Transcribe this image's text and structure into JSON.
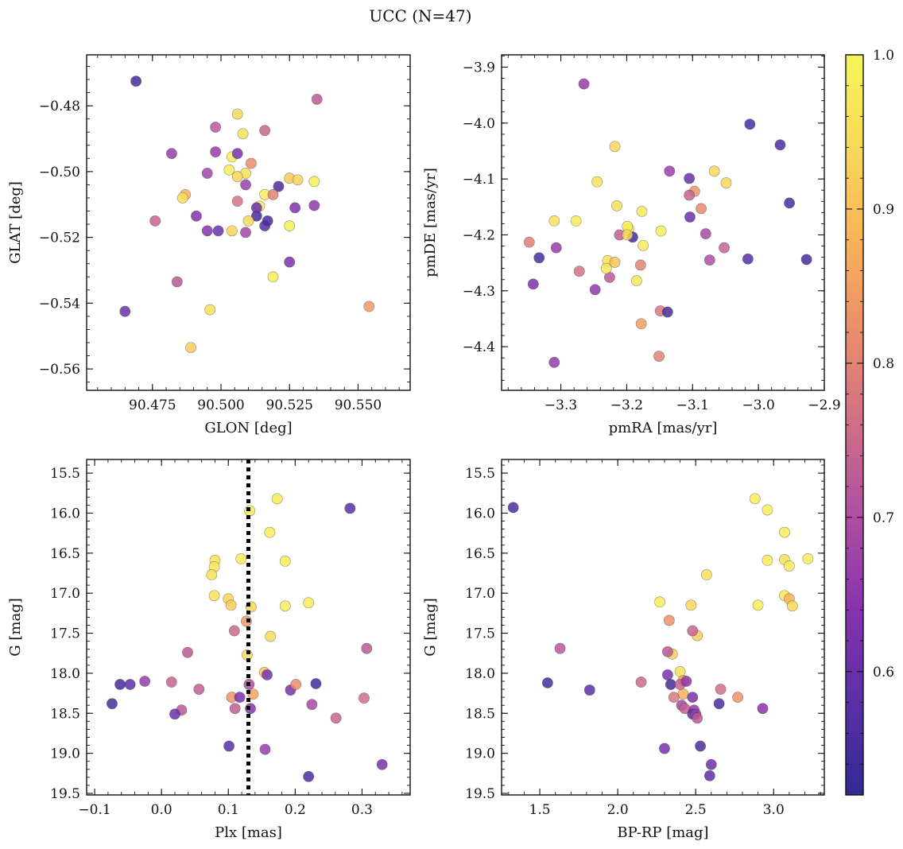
{
  "figure": {
    "title": "UCC (N=47)"
  },
  "colorbar": {
    "min": 0.52,
    "max": 1.0,
    "ticks": [
      0.6,
      0.7,
      0.8,
      0.9,
      1.0
    ],
    "tick_labels": [
      "0.6",
      "0.7",
      "0.8",
      "0.9",
      "1.0"
    ],
    "colormap": "plasma",
    "stops": [
      "#312a92",
      "#5b2fa6",
      "#8732ad",
      "#ae4fa2",
      "#cf6e87",
      "#ea8d6a",
      "#f9b25a",
      "#f8d95a",
      "#f6f55a"
    ]
  },
  "chart_data": [
    {
      "type": "scatter",
      "id": "glon_glat",
      "xlabel": "GLON [deg]",
      "ylabel": "GLAT [deg]",
      "xlim": [
        90.451,
        90.569
      ],
      "ylim": [
        -0.5665,
        -0.4645
      ],
      "y_inverted": false,
      "xticks": [
        90.475,
        90.5,
        90.525,
        90.55
      ],
      "xtick_labels": [
        "90.475",
        "90.500",
        "90.525",
        "90.550"
      ],
      "yticks": [
        -0.48,
        -0.5,
        -0.52,
        -0.54,
        -0.56
      ],
      "ytick_labels": [
        "−0.48",
        "−0.50",
        "−0.52",
        "−0.54",
        "−0.56"
      ],
      "x_minor_step": 0.005,
      "y_minor_step": 0.004,
      "guide_x": null,
      "x": [
        90.469,
        90.535,
        90.506,
        90.498,
        90.516,
        90.508,
        90.482,
        90.498,
        90.504,
        90.506,
        90.511,
        90.495,
        90.503,
        90.509,
        90.506,
        90.525,
        90.528,
        90.534,
        90.521,
        90.487,
        90.486,
        90.516,
        90.519,
        90.509,
        90.506,
        90.514,
        90.534,
        90.527,
        90.476,
        90.513,
        90.491,
        90.509,
        90.516,
        90.504,
        90.499,
        90.495,
        90.51,
        90.525,
        90.519,
        90.525,
        90.484,
        90.465,
        90.496,
        90.554,
        90.489,
        90.513,
        90.517
      ],
      "y": [
        -0.4725,
        -0.478,
        -0.4825,
        -0.4865,
        -0.4875,
        -0.4885,
        -0.4945,
        -0.494,
        -0.4955,
        -0.4945,
        -0.4975,
        -0.5005,
        -0.4995,
        -0.5005,
        -0.5015,
        -0.502,
        -0.5025,
        -0.503,
        -0.5045,
        -0.507,
        -0.508,
        -0.507,
        -0.507,
        -0.504,
        -0.509,
        -0.5105,
        -0.5103,
        -0.511,
        -0.515,
        -0.5135,
        -0.5135,
        -0.5185,
        -0.5165,
        -0.518,
        -0.518,
        -0.518,
        -0.515,
        -0.5165,
        -0.532,
        -0.5275,
        -0.5335,
        -0.5425,
        -0.542,
        -0.541,
        -0.5535,
        -0.511,
        -0.515
      ],
      "c": [
        0.55,
        0.72,
        0.94,
        0.72,
        0.74,
        0.96,
        0.66,
        0.66,
        0.98,
        0.62,
        0.82,
        0.68,
        0.98,
        0.96,
        0.93,
        0.92,
        0.93,
        0.98,
        0.56,
        0.88,
        0.95,
        0.98,
        0.8,
        0.67,
        0.77,
        0.99,
        0.65,
        0.63,
        0.74,
        0.55,
        0.63,
        0.68,
        0.58,
        0.93,
        0.6,
        0.64,
        0.94,
        0.98,
        0.98,
        0.62,
        0.72,
        0.6,
        0.96,
        0.84,
        0.92,
        0.6,
        0.55
      ]
    },
    {
      "type": "scatter",
      "id": "pm",
      "xlabel": "pmRA [mas/yr]",
      "ylabel": "pmDE [mas/yr]",
      "xlim": [
        -3.39,
        -2.9
      ],
      "ylim": [
        -4.478,
        -3.878
      ],
      "y_inverted": false,
      "xticks": [
        -3.3,
        -3.2,
        -3.1,
        -3.0,
        -2.9
      ],
      "xtick_labels": [
        "−3.3",
        "−3.2",
        "−3.1",
        "−3.0",
        "−2.9"
      ],
      "yticks": [
        -3.9,
        -4.0,
        -4.1,
        -4.2,
        -4.3,
        -4.4
      ],
      "ytick_labels": [
        "−3.9",
        "−4.0",
        "−4.1",
        "−4.2",
        "−4.3",
        "−4.4"
      ],
      "x_minor_step": 0.02,
      "y_minor_step": 0.02,
      "guide_x": null,
      "x": [
        -3.265,
        -3.013,
        -2.967,
        -3.218,
        -3.135,
        -3.067,
        -3.105,
        -3.049,
        -3.245,
        -3.097,
        -3.105,
        -3.215,
        -3.087,
        -3.177,
        -2.953,
        -3.31,
        -3.277,
        -3.197,
        -3.199,
        -3.104,
        -3.148,
        -3.08,
        -3.211,
        -3.191,
        -3.175,
        -3.348,
        -3.307,
        -3.016,
        -2.927,
        -3.333,
        -3.229,
        -3.218,
        -3.185,
        -3.179,
        -3.272,
        -3.226,
        -3.342,
        -3.248,
        -3.149,
        -3.138,
        -3.178,
        -3.151,
        -3.31,
        -3.052,
        -3.074,
        -3.199,
        -3.231
      ],
      "y": [
        -3.93,
        -4.002,
        -4.039,
        -4.042,
        -4.086,
        -4.086,
        -4.099,
        -4.107,
        -4.105,
        -4.122,
        -4.129,
        -4.148,
        -4.153,
        -4.158,
        -4.143,
        -4.175,
        -4.175,
        -4.189,
        -4.185,
        -4.168,
        -4.193,
        -4.198,
        -4.2,
        -4.204,
        -4.219,
        -4.213,
        -4.223,
        -4.243,
        -4.244,
        -4.241,
        -4.246,
        -4.249,
        -4.282,
        -4.254,
        -4.265,
        -4.276,
        -4.288,
        -4.298,
        -4.336,
        -4.338,
        -4.359,
        -4.417,
        -4.428,
        -4.223,
        -4.245,
        -4.2,
        -4.26
      ],
      "c": [
        0.66,
        0.56,
        0.56,
        0.94,
        0.67,
        0.94,
        0.6,
        0.94,
        0.96,
        0.83,
        0.74,
        0.95,
        0.81,
        0.97,
        0.56,
        0.95,
        0.98,
        0.97,
        0.98,
        0.6,
        0.98,
        0.69,
        0.73,
        0.55,
        0.98,
        0.79,
        0.66,
        0.58,
        0.55,
        0.55,
        0.96,
        0.91,
        0.97,
        0.8,
        0.77,
        0.72,
        0.62,
        0.65,
        0.78,
        0.55,
        0.85,
        0.8,
        0.66,
        0.74,
        0.7,
        0.94,
        0.97
      ]
    },
    {
      "type": "scatter",
      "id": "plx_g",
      "xlabel": "Plx [mas]",
      "ylabel": "G [mag]",
      "xlim": [
        -0.112,
        0.372
      ],
      "ylim": [
        19.52,
        15.33
      ],
      "y_inverted": true,
      "xticks": [
        -0.1,
        0.0,
        0.1,
        0.2,
        0.3
      ],
      "xtick_labels": [
        "−0.1",
        "0.0",
        "0.1",
        "0.2",
        "0.3"
      ],
      "yticks": [
        15.5,
        16.0,
        16.5,
        17.0,
        17.5,
        18.0,
        18.5,
        19.0,
        19.5
      ],
      "ytick_labels": [
        "15.5",
        "16.0",
        "16.5",
        "17.0",
        "17.5",
        "18.0",
        "18.5",
        "19.0",
        "19.5"
      ],
      "x_minor_step": 0.02,
      "y_minor_step": 0.1,
      "guide_x": 0.13,
      "x": [
        0.173,
        0.132,
        0.282,
        0.162,
        0.08,
        0.185,
        0.119,
        0.079,
        0.075,
        0.079,
        0.1,
        0.22,
        0.104,
        0.134,
        0.185,
        0.163,
        0.109,
        0.127,
        0.307,
        0.039,
        0.128,
        0.154,
        0.158,
        -0.062,
        -0.047,
        -0.025,
        0.015,
        0.131,
        0.193,
        0.201,
        0.231,
        0.056,
        0.137,
        0.105,
        0.117,
        -0.074,
        0.225,
        0.03,
        0.11,
        0.133,
        0.02,
        0.303,
        0.261,
        0.101,
        0.155,
        0.22,
        0.33
      ],
      "y": [
        15.82,
        15.97,
        15.94,
        16.24,
        16.59,
        16.6,
        16.57,
        16.67,
        16.77,
        17.03,
        17.07,
        17.12,
        17.15,
        17.17,
        17.16,
        17.54,
        17.47,
        17.35,
        17.69,
        17.74,
        17.77,
        17.99,
        18.02,
        18.14,
        18.14,
        18.1,
        18.11,
        18.14,
        18.21,
        18.14,
        18.13,
        18.2,
        18.26,
        18.3,
        18.3,
        18.38,
        18.39,
        18.46,
        18.44,
        18.44,
        18.51,
        18.31,
        18.56,
        18.91,
        18.95,
        19.29,
        19.14
      ],
      "c": [
        0.98,
        0.98,
        0.58,
        0.98,
        0.96,
        0.98,
        0.98,
        0.97,
        0.96,
        0.96,
        0.93,
        0.98,
        0.92,
        0.93,
        0.98,
        0.94,
        0.75,
        0.84,
        0.72,
        0.72,
        0.94,
        0.91,
        0.62,
        0.55,
        0.58,
        0.66,
        0.74,
        0.7,
        0.62,
        0.82,
        0.55,
        0.73,
        0.86,
        0.83,
        0.62,
        0.55,
        0.69,
        0.72,
        0.73,
        0.64,
        0.6,
        0.76,
        0.74,
        0.58,
        0.66,
        0.56,
        0.62
      ]
    },
    {
      "type": "scatter",
      "id": "bprp_g",
      "xlabel": "BP-RP [mag]",
      "ylabel": "G [mag]",
      "xlim": [
        1.255,
        3.325
      ],
      "ylim": [
        19.52,
        15.33
      ],
      "y_inverted": true,
      "xticks": [
        1.5,
        2.0,
        2.5,
        3.0
      ],
      "xtick_labels": [
        "1.5",
        "2.0",
        "2.5",
        "3.0"
      ],
      "yticks": [
        15.5,
        16.0,
        16.5,
        17.0,
        17.5,
        18.0,
        18.5,
        19.0,
        19.5
      ],
      "ytick_labels": [
        "15.5",
        "16.0",
        "16.5",
        "17.0",
        "17.5",
        "18.0",
        "18.5",
        "19.0",
        "19.5"
      ],
      "x_minor_step": 0.1,
      "y_minor_step": 0.1,
      "guide_x": null,
      "x": [
        1.33,
        2.88,
        2.96,
        3.07,
        3.22,
        2.96,
        3.07,
        3.1,
        2.57,
        2.27,
        3.07,
        3.1,
        3.12,
        2.9,
        2.47,
        2.51,
        2.33,
        2.35,
        2.32,
        1.63,
        2.48,
        2.4,
        2.42,
        2.32,
        2.34,
        1.55,
        2.15,
        2.42,
        2.4,
        1.82,
        2.66,
        2.65,
        2.41,
        2.36,
        2.48,
        2.77,
        2.43,
        2.49,
        2.93,
        2.48,
        2.5,
        2.51,
        2.3,
        2.59,
        2.6,
        2.53,
        2.44
      ],
      "y": [
        15.93,
        15.82,
        15.96,
        16.24,
        16.57,
        16.59,
        16.58,
        16.66,
        16.77,
        17.11,
        17.03,
        17.07,
        17.16,
        17.15,
        17.15,
        17.53,
        17.34,
        17.76,
        17.73,
        17.69,
        17.47,
        17.98,
        18.09,
        18.02,
        18.14,
        18.12,
        18.11,
        18.26,
        18.14,
        18.21,
        18.2,
        18.38,
        18.4,
        18.3,
        18.3,
        18.3,
        18.44,
        18.46,
        18.44,
        18.51,
        18.51,
        18.56,
        18.94,
        19.28,
        19.14,
        18.91,
        18.1
      ],
      "c": [
        0.56,
        0.98,
        0.98,
        0.98,
        0.98,
        0.98,
        0.96,
        0.98,
        0.95,
        0.98,
        0.97,
        0.88,
        0.94,
        0.98,
        0.94,
        0.92,
        0.83,
        0.92,
        0.72,
        0.72,
        0.74,
        0.96,
        0.86,
        0.62,
        0.55,
        0.55,
        0.75,
        0.88,
        0.74,
        0.58,
        0.76,
        0.56,
        0.68,
        0.78,
        0.62,
        0.83,
        0.73,
        0.66,
        0.64,
        0.58,
        0.66,
        0.72,
        0.62,
        0.58,
        0.6,
        0.56,
        0.65
      ]
    }
  ]
}
